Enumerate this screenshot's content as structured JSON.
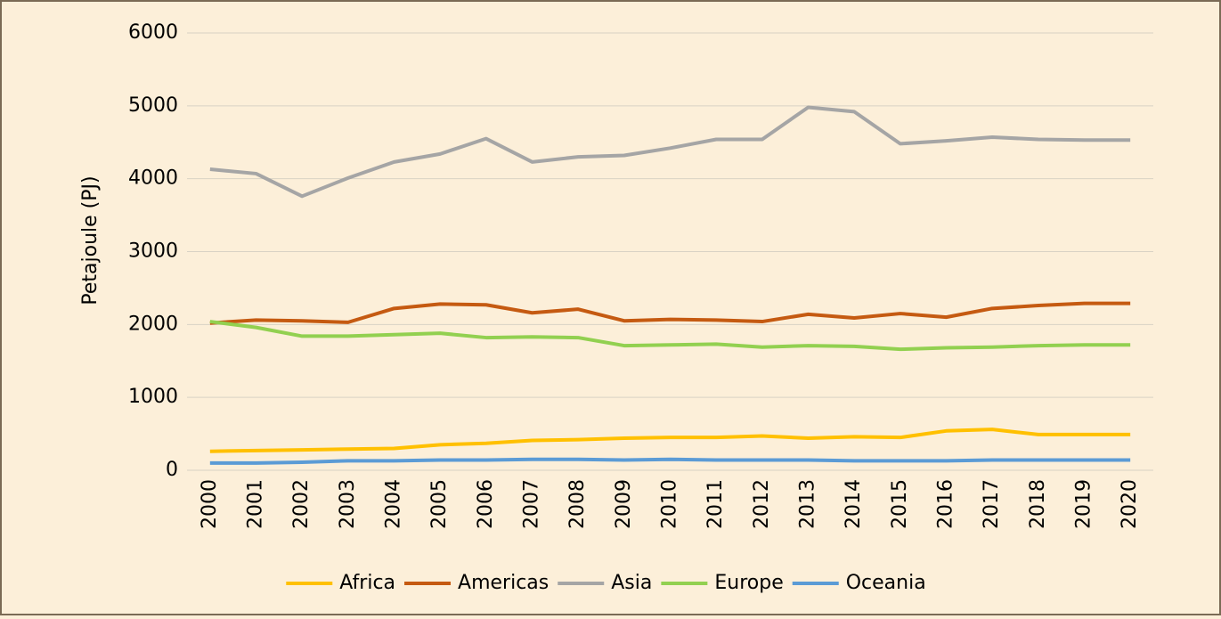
{
  "chart_data": {
    "type": "line",
    "y_label": "Petajoule (PJ)",
    "categories": [
      "2000",
      "2001",
      "2002",
      "2003",
      "2004",
      "2005",
      "2006",
      "2007",
      "2008",
      "2009",
      "2010",
      "2011",
      "2012",
      "2013",
      "2014",
      "2015",
      "2016",
      "2017",
      "2018",
      "2019",
      "2020"
    ],
    "series": [
      {
        "name": "Africa",
        "color": "#ffc000",
        "values": [
          260,
          270,
          280,
          290,
          300,
          350,
          370,
          410,
          420,
          440,
          450,
          450,
          470,
          440,
          460,
          450,
          540,
          560,
          490,
          490,
          490
        ]
      },
      {
        "name": "Americas",
        "color": "#c55a11",
        "values": [
          2020,
          2060,
          2050,
          2030,
          2220,
          2280,
          2270,
          2160,
          2210,
          2050,
          2070,
          2060,
          2040,
          2140,
          2090,
          2150,
          2100,
          2220,
          2260,
          2290,
          2290
        ]
      },
      {
        "name": "Asia",
        "color": "#a5a5a5",
        "values": [
          4130,
          4070,
          3760,
          4010,
          4230,
          4340,
          4550,
          4230,
          4300,
          4320,
          4420,
          4540,
          4540,
          4980,
          4920,
          4480,
          4520,
          4570,
          4540,
          4530,
          4530
        ]
      },
      {
        "name": "Europe",
        "color": "#92d050",
        "values": [
          2040,
          1960,
          1840,
          1840,
          1860,
          1880,
          1820,
          1830,
          1820,
          1710,
          1720,
          1730,
          1690,
          1710,
          1700,
          1660,
          1680,
          1690,
          1710,
          1720,
          1720
        ]
      },
      {
        "name": "Oceania",
        "color": "#5b9bd5",
        "values": [
          100,
          100,
          110,
          130,
          130,
          140,
          140,
          150,
          150,
          140,
          150,
          140,
          140,
          140,
          130,
          130,
          130,
          140,
          140,
          140,
          140
        ]
      }
    ],
    "ylim": [
      0,
      6000
    ],
    "yticks": [
      0,
      1000,
      2000,
      3000,
      4000,
      5000,
      6000
    ],
    "grid": true,
    "legend": "bottom"
  }
}
